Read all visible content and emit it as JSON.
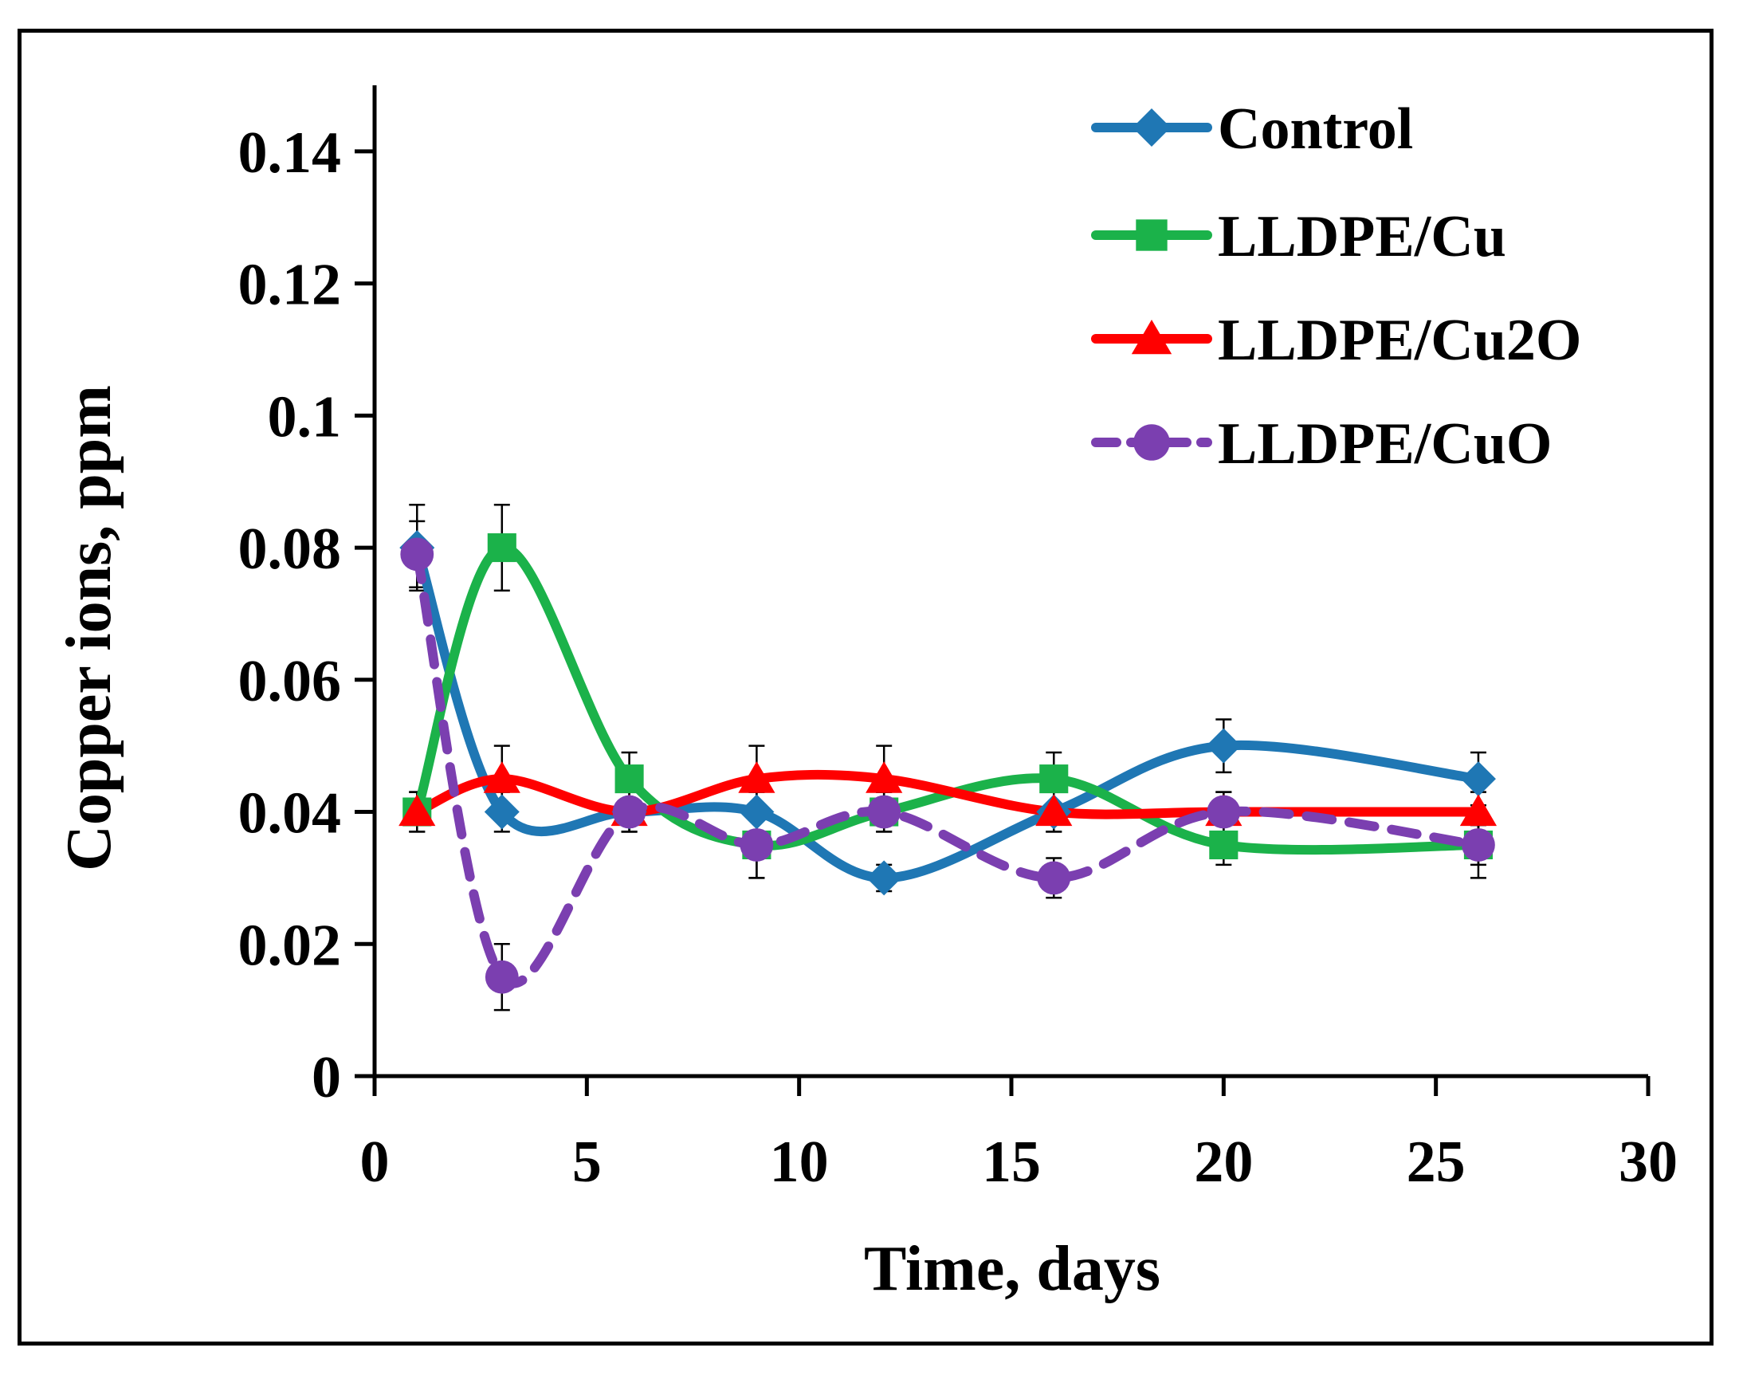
{
  "chart_data": {
    "type": "line",
    "title": "",
    "xlabel": "Time, days",
    "ylabel": "Copper ions, ppm",
    "xlim": [
      0,
      30
    ],
    "ylim": [
      0,
      0.15
    ],
    "xticks": [
      0,
      5,
      10,
      15,
      20,
      25,
      30
    ],
    "xtick_labels": [
      "0",
      "5",
      "10",
      "15",
      "20",
      "25",
      "30"
    ],
    "yticks": [
      0,
      0.02,
      0.04,
      0.06,
      0.08,
      0.1,
      0.12,
      0.14
    ],
    "ytick_labels": [
      "0",
      "0.02",
      "0.04",
      "0.06",
      "0.08",
      "0.1",
      "0.12",
      "0.14"
    ],
    "grid": false,
    "legend_position": "top-right",
    "x": [
      1,
      3,
      6,
      9,
      12,
      16,
      20,
      26
    ],
    "series": [
      {
        "name": "Control",
        "color": "#1f77b4",
        "marker": "diamond",
        "dashed": false,
        "values": [
          0.08,
          0.04,
          0.04,
          0.04,
          0.03,
          0.04,
          0.05,
          0.045
        ],
        "errors": [
          0.0065,
          0.003,
          0.003,
          0.003,
          0.002,
          0.003,
          0.004,
          0.004
        ]
      },
      {
        "name": "LLDPE/Cu",
        "color": "#1bb24a",
        "marker": "square",
        "dashed": false,
        "values": [
          0.04,
          0.08,
          0.045,
          0.035,
          0.04,
          0.045,
          0.035,
          0.035
        ],
        "errors": [
          0.003,
          0.0065,
          0.004,
          0.005,
          0.003,
          0.004,
          0.003,
          0.003
        ]
      },
      {
        "name": "LLDPE/Cu2O",
        "color": "#ff0000",
        "marker": "triangle",
        "dashed": false,
        "values": [
          0.04,
          0.045,
          0.04,
          0.045,
          0.045,
          0.04,
          0.04,
          0.04
        ],
        "errors": [
          0.003,
          0.005,
          0.003,
          0.005,
          0.005,
          0.003,
          0.003,
          0.003
        ]
      },
      {
        "name": "LLDPE/CuO",
        "color": "#7b3fb0",
        "marker": "circle",
        "dashed": true,
        "values": [
          0.079,
          0.015,
          0.04,
          0.035,
          0.04,
          0.03,
          0.04,
          0.035
        ],
        "errors": [
          0.005,
          0.005,
          0.003,
          0.005,
          0.003,
          0.003,
          0.003,
          0.005
        ]
      }
    ]
  }
}
